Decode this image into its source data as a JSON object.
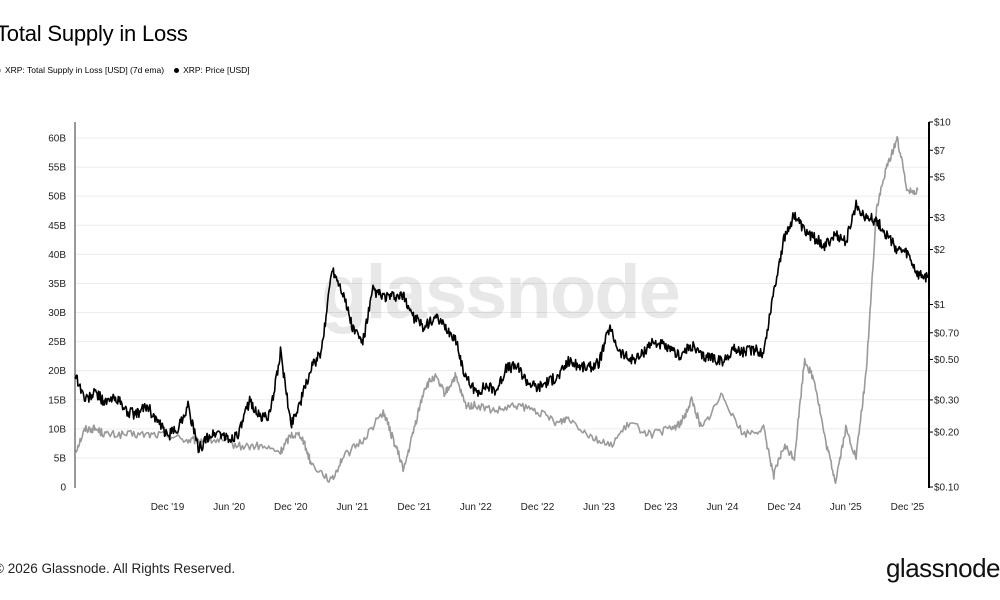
{
  "title": "Total Supply in Loss",
  "legend": [
    {
      "label": "XRP: Total Supply in Loss [USD] (7d ema)",
      "color": "#999999"
    },
    {
      "label": "XRP: Price [USD]",
      "color": "#000000"
    }
  ],
  "watermark": "glassnode",
  "footer": {
    "copyright": "© 2026 Glassnode. All Rights Reserved.",
    "logo": "glassnode"
  },
  "chart_data": {
    "type": "line",
    "x_ticks": [
      "Dec '19",
      "Jun '20",
      "Dec '20",
      "Jun '21",
      "Dec '21",
      "Jun '22",
      "Dec '22",
      "Jun '23",
      "Dec '23",
      "Jun '24",
      "Dec '24",
      "Jun '25",
      "Dec '25"
    ],
    "x_range": [
      "2019-03",
      "2026-02"
    ],
    "y_left": {
      "ticks": [
        "0",
        "5B",
        "10B",
        "15B",
        "20B",
        "25B",
        "30B",
        "35B",
        "40B",
        "45B",
        "50B",
        "55B",
        "60B"
      ],
      "values": [
        0,
        5,
        10,
        15,
        20,
        25,
        30,
        35,
        40,
        45,
        50,
        55,
        60
      ],
      "unit": "B USD",
      "range": [
        0,
        60
      ]
    },
    "y_right": {
      "ticks": [
        "$0.10",
        "$0.20",
        "$0.30",
        "$0.50",
        "$0.70",
        "$1",
        "$2",
        "$3",
        "$5",
        "$7",
        "$10"
      ],
      "values": [
        0.1,
        0.2,
        0.3,
        0.5,
        0.7,
        1,
        2,
        3,
        5,
        7,
        10
      ],
      "scale": "log",
      "range": [
        0.1,
        10
      ]
    },
    "grid": "horizontal",
    "legend_position": "top-left",
    "series": [
      {
        "name": "XRP: Total Supply in Loss [USD] (7d ema)",
        "axis": "left",
        "color": "#999999",
        "points": [
          [
            "2019-03",
            6
          ],
          [
            "2019-04",
            10
          ],
          [
            "2019-05",
            10
          ],
          [
            "2019-06",
            9
          ],
          [
            "2019-08",
            9
          ],
          [
            "2019-10",
            9
          ],
          [
            "2019-12",
            9
          ],
          [
            "2020-02",
            8
          ],
          [
            "2020-03",
            8
          ],
          [
            "2020-05",
            8
          ],
          [
            "2020-07",
            7
          ],
          [
            "2020-09",
            7
          ],
          [
            "2020-11",
            6
          ],
          [
            "2020-12",
            9
          ],
          [
            "2021-01",
            9
          ],
          [
            "2021-02",
            4
          ],
          [
            "2021-04",
            1
          ],
          [
            "2021-05",
            5
          ],
          [
            "2021-07",
            8
          ],
          [
            "2021-09",
            13
          ],
          [
            "2021-10",
            8
          ],
          [
            "2021-11",
            3
          ],
          [
            "2021-12",
            10
          ],
          [
            "2022-01",
            17
          ],
          [
            "2022-02",
            19
          ],
          [
            "2022-03",
            16
          ],
          [
            "2022-04",
            19
          ],
          [
            "2022-05",
            14
          ],
          [
            "2022-06",
            14
          ],
          [
            "2022-08",
            13
          ],
          [
            "2022-10",
            14
          ],
          [
            "2022-12",
            13
          ],
          [
            "2023-02",
            11
          ],
          [
            "2023-03",
            12
          ],
          [
            "2023-05",
            9
          ],
          [
            "2023-07",
            7
          ],
          [
            "2023-09",
            11
          ],
          [
            "2023-11",
            9
          ],
          [
            "2024-01",
            10
          ],
          [
            "2024-02",
            11
          ],
          [
            "2024-03",
            15
          ],
          [
            "2024-04",
            10
          ],
          [
            "2024-06",
            16
          ],
          [
            "2024-08",
            9
          ],
          [
            "2024-10",
            10
          ],
          [
            "2024-11",
            2
          ],
          [
            "2024-12",
            7
          ],
          [
            "2025-01",
            5
          ],
          [
            "2025-02",
            22
          ],
          [
            "2025-03",
            18
          ],
          [
            "2025-04",
            8
          ],
          [
            "2025-05",
            1
          ],
          [
            "2025-06",
            10
          ],
          [
            "2025-07",
            5
          ],
          [
            "2025-08",
            20
          ],
          [
            "2025-09",
            48
          ],
          [
            "2025-10",
            55
          ],
          [
            "2025-11",
            60
          ],
          [
            "2025-12",
            51
          ],
          [
            "2026-01",
            51
          ]
        ]
      },
      {
        "name": "XRP: Price [USD]",
        "axis": "right",
        "color": "#000000",
        "points": [
          [
            "2019-03",
            0.42
          ],
          [
            "2019-04",
            0.3
          ],
          [
            "2019-05",
            0.33
          ],
          [
            "2019-06",
            0.29
          ],
          [
            "2019-07",
            0.31
          ],
          [
            "2019-08",
            0.26
          ],
          [
            "2019-09",
            0.25
          ],
          [
            "2019-10",
            0.28
          ],
          [
            "2019-11",
            0.23
          ],
          [
            "2019-12",
            0.19
          ],
          [
            "2020-01",
            0.21
          ],
          [
            "2020-02",
            0.28
          ],
          [
            "2020-03",
            0.16
          ],
          [
            "2020-04",
            0.19
          ],
          [
            "2020-05",
            0.2
          ],
          [
            "2020-06",
            0.18
          ],
          [
            "2020-07",
            0.2
          ],
          [
            "2020-08",
            0.3
          ],
          [
            "2020-09",
            0.24
          ],
          [
            "2020-10",
            0.25
          ],
          [
            "2020-11",
            0.55
          ],
          [
            "2020-12",
            0.22
          ],
          [
            "2021-01",
            0.3
          ],
          [
            "2021-02",
            0.45
          ],
          [
            "2021-03",
            0.55
          ],
          [
            "2021-04",
            1.6
          ],
          [
            "2021-05",
            1.2
          ],
          [
            "2021-06",
            0.75
          ],
          [
            "2021-07",
            0.62
          ],
          [
            "2021-08",
            1.2
          ],
          [
            "2021-09",
            1.1
          ],
          [
            "2021-10",
            1.1
          ],
          [
            "2021-11",
            1.1
          ],
          [
            "2021-12",
            0.85
          ],
          [
            "2022-01",
            0.75
          ],
          [
            "2022-02",
            0.85
          ],
          [
            "2022-03",
            0.75
          ],
          [
            "2022-04",
            0.65
          ],
          [
            "2022-05",
            0.4
          ],
          [
            "2022-06",
            0.33
          ],
          [
            "2022-07",
            0.36
          ],
          [
            "2022-08",
            0.34
          ],
          [
            "2022-09",
            0.45
          ],
          [
            "2022-10",
            0.46
          ],
          [
            "2022-11",
            0.38
          ],
          [
            "2022-12",
            0.35
          ],
          [
            "2023-01",
            0.38
          ],
          [
            "2023-02",
            0.4
          ],
          [
            "2023-03",
            0.49
          ],
          [
            "2023-04",
            0.46
          ],
          [
            "2023-05",
            0.45
          ],
          [
            "2023-06",
            0.48
          ],
          [
            "2023-07",
            0.75
          ],
          [
            "2023-08",
            0.55
          ],
          [
            "2023-09",
            0.5
          ],
          [
            "2023-10",
            0.52
          ],
          [
            "2023-11",
            0.62
          ],
          [
            "2023-12",
            0.61
          ],
          [
            "2024-01",
            0.55
          ],
          [
            "2024-02",
            0.53
          ],
          [
            "2024-03",
            0.6
          ],
          [
            "2024-04",
            0.52
          ],
          [
            "2024-05",
            0.52
          ],
          [
            "2024-06",
            0.48
          ],
          [
            "2024-07",
            0.57
          ],
          [
            "2024-08",
            0.55
          ],
          [
            "2024-09",
            0.57
          ],
          [
            "2024-10",
            0.54
          ],
          [
            "2024-11",
            1.2
          ],
          [
            "2024-12",
            2.3
          ],
          [
            "2025-01",
            3.1
          ],
          [
            "2025-02",
            2.5
          ],
          [
            "2025-03",
            2.3
          ],
          [
            "2025-04",
            2.1
          ],
          [
            "2025-05",
            2.4
          ],
          [
            "2025-06",
            2.2
          ],
          [
            "2025-07",
            3.5
          ],
          [
            "2025-08",
            3.0
          ],
          [
            "2025-09",
            2.9
          ],
          [
            "2025-10",
            2.4
          ],
          [
            "2025-11",
            2.0
          ],
          [
            "2025-12",
            1.9
          ],
          [
            "2026-01",
            1.45
          ],
          [
            "2026-02",
            1.4
          ]
        ]
      }
    ]
  }
}
